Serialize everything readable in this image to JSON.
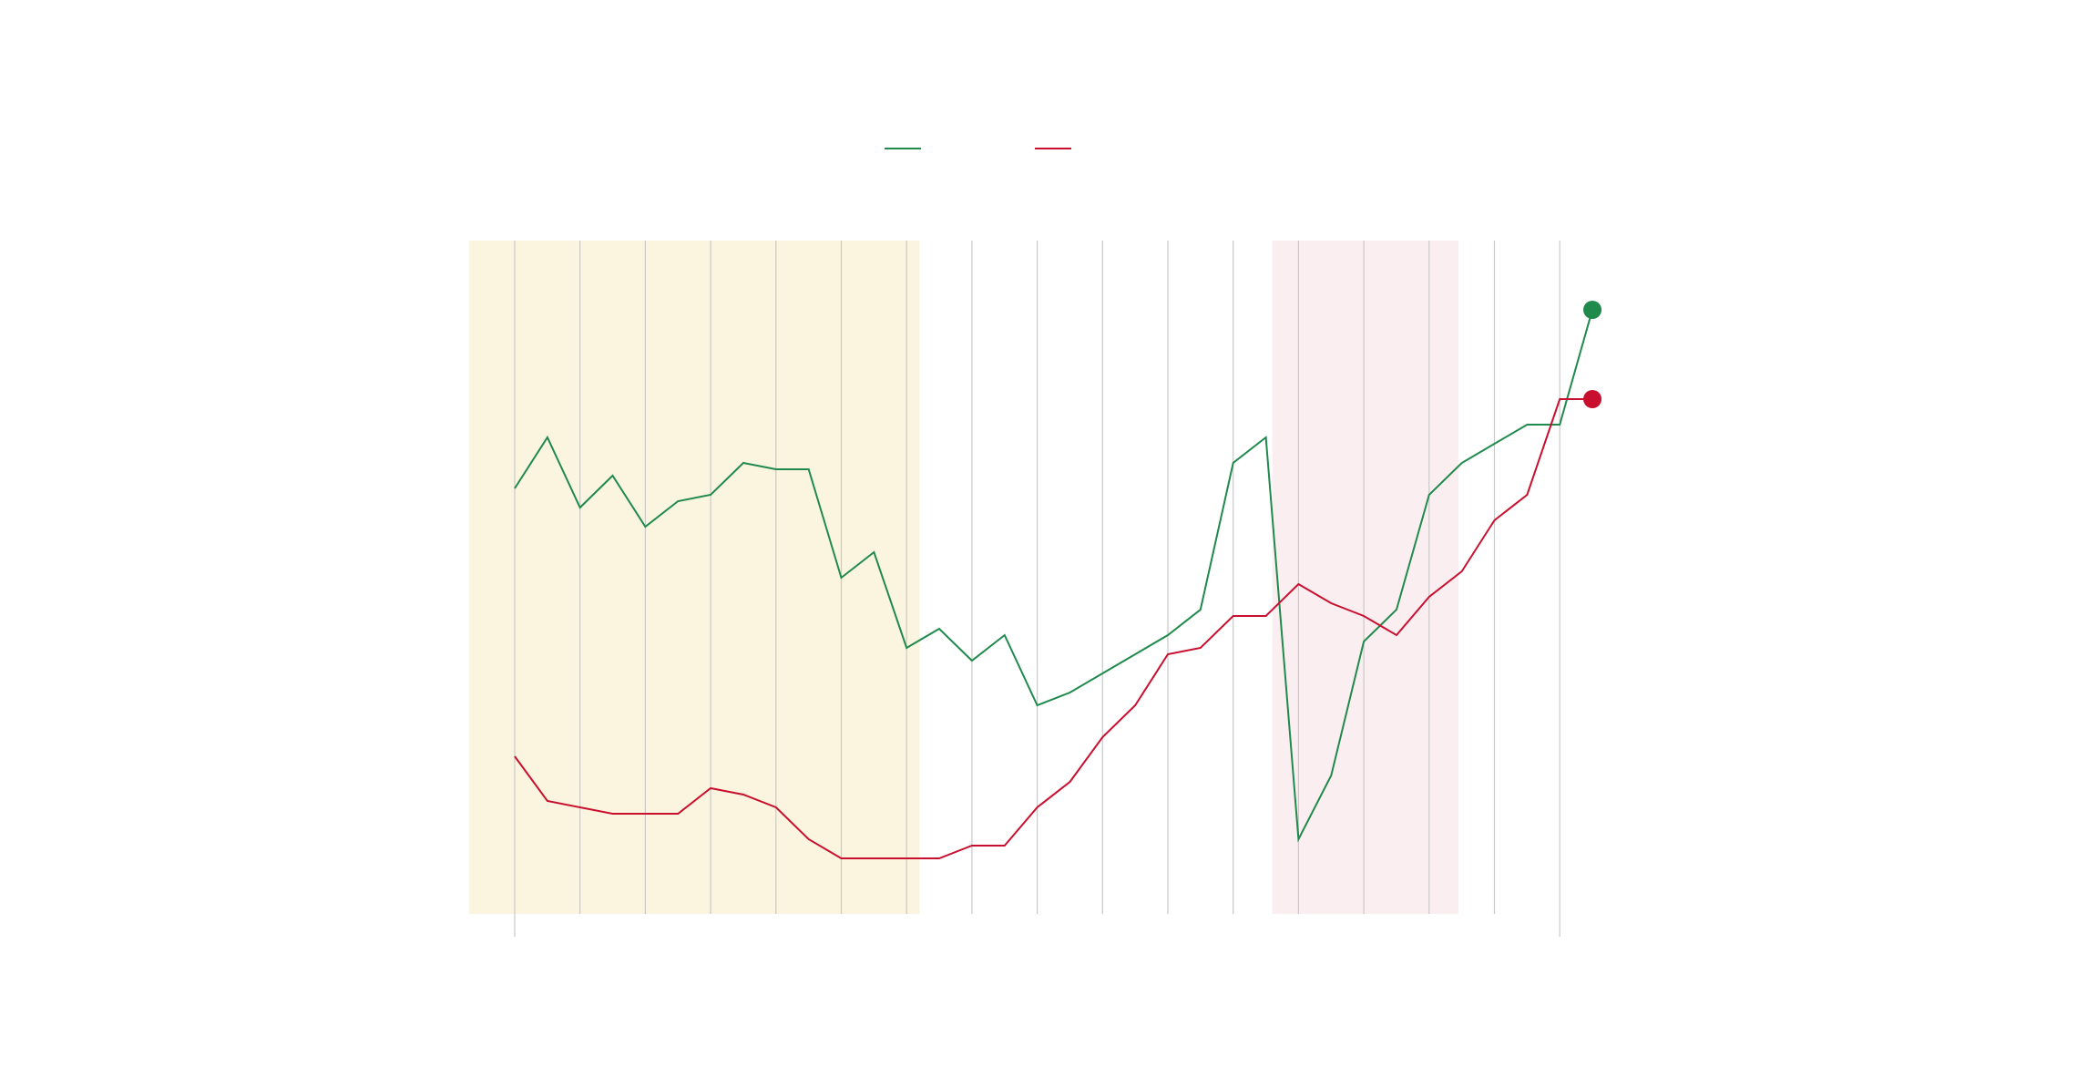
{
  "colors": {
    "series_green": "#1f8a4c",
    "series_red": "#c8102e",
    "shade_yellow": "#fbf4de",
    "shade_pink": "#fbeef1",
    "gridline": "#c9c9c9"
  },
  "chart_data": {
    "type": "line",
    "title": "",
    "xlabel": "",
    "ylabel": "",
    "x_tick_count": 17,
    "points_per_interval": 2,
    "ylim": [
      0,
      100
    ],
    "grid": "vertical",
    "legend_position": "top-center",
    "shaded_regions": [
      {
        "from": -0.7,
        "to": 6.2,
        "color": "shade_yellow"
      },
      {
        "from": 11.6,
        "to": 14.45,
        "color": "shade_pink"
      }
    ],
    "series": [
      {
        "color": "series_green",
        "endpoint_marker": true,
        "values": [
          67,
          75,
          64,
          69,
          61,
          65,
          66,
          71,
          70,
          70,
          53,
          57,
          42,
          45,
          40,
          44,
          33,
          35,
          38,
          41,
          44,
          48,
          71,
          75,
          12,
          22,
          43,
          48,
          66,
          71,
          74,
          77,
          77,
          95
        ]
      },
      {
        "color": "series_red",
        "endpoint_marker": true,
        "values": [
          25,
          18,
          17,
          16,
          16,
          16,
          20,
          19,
          17,
          12,
          9,
          9,
          9,
          9,
          11,
          11,
          17,
          21,
          28,
          33,
          41,
          42,
          47,
          47,
          52,
          49,
          47,
          44,
          50,
          54,
          62,
          66,
          81,
          81
        ]
      }
    ]
  }
}
